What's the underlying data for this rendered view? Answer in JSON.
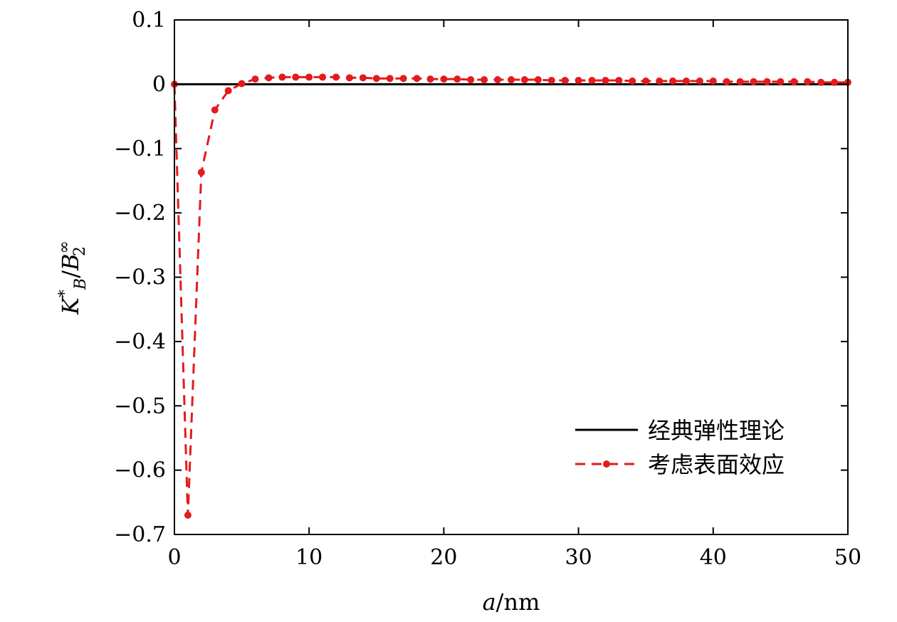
{
  "chart_data": {
    "type": "line",
    "xlabel": "a/nm",
    "ylabel": "K*_B/B^∞_2",
    "xlim": [
      0,
      50
    ],
    "ylim": [
      -0.7,
      0.1
    ],
    "xticks": [
      "0",
      "10",
      "20",
      "30",
      "40",
      "50"
    ],
    "yticks": [
      "0.1",
      "0",
      "−0.1",
      "−0.2",
      "−0.3",
      "−0.4",
      "−0.5",
      "−0.6",
      "−0.7"
    ],
    "grid": false,
    "legend_position": "lower-right",
    "series": [
      {
        "name": "经典弹性理论",
        "color": "#000000",
        "style": "solid",
        "x": [
          0,
          50
        ],
        "y": [
          0,
          0
        ]
      },
      {
        "name": "考虑表面效应",
        "color": "#e41a1c",
        "style": "dashed-with-markers",
        "x": [
          0,
          1,
          2,
          3,
          4,
          5,
          6,
          7,
          8,
          9,
          10,
          11,
          12,
          13,
          14,
          15,
          16,
          17,
          18,
          19,
          20,
          21,
          22,
          23,
          24,
          25,
          26,
          27,
          28,
          29,
          30,
          31,
          32,
          33,
          34,
          35,
          36,
          37,
          38,
          39,
          40,
          41,
          42,
          43,
          44,
          45,
          46,
          47,
          48,
          49,
          50
        ],
        "y": [
          0,
          -0.67,
          -0.137,
          -0.04,
          -0.01,
          0.001,
          0.008,
          0.01,
          0.011,
          0.011,
          0.011,
          0.011,
          0.011,
          0.01,
          0.01,
          0.009,
          0.009,
          0.009,
          0.009,
          0.008,
          0.008,
          0.008,
          0.007,
          0.007,
          0.007,
          0.007,
          0.007,
          0.007,
          0.006,
          0.006,
          0.006,
          0.006,
          0.006,
          0.006,
          0.005,
          0.005,
          0.005,
          0.005,
          0.005,
          0.005,
          0.005,
          0.004,
          0.004,
          0.004,
          0.004,
          0.004,
          0.004,
          0.004,
          0.003,
          0.003,
          0.003
        ]
      }
    ]
  }
}
